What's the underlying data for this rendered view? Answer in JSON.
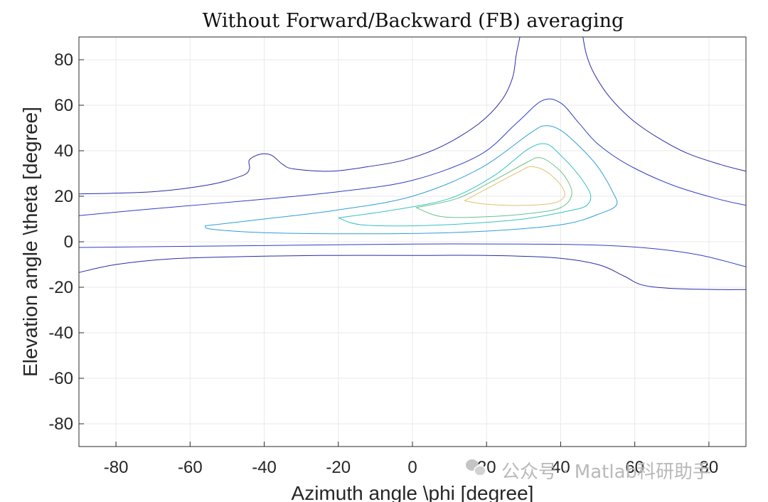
{
  "chart_data": {
    "type": "contour",
    "title": "Without Forward/Backward (FB) averaging",
    "xlabel": "Azimuth angle \\phi [degree]",
    "ylabel": "Elevation angle \\theta [degree]",
    "xlim": [
      -90,
      90
    ],
    "ylim": [
      -90,
      90
    ],
    "xticks": [
      -80,
      -60,
      -40,
      -20,
      0,
      20,
      40,
      60,
      80
    ],
    "yticks": [
      80,
      60,
      40,
      20,
      0,
      -20,
      -40,
      -60,
      -80
    ],
    "grid": true,
    "levels": [
      {
        "name": "level-1",
        "color": "#2a2aa8",
        "paths": [
          [
            [
              -90,
              21
            ],
            [
              -70,
              22
            ],
            [
              -55,
              25
            ],
            [
              -46,
              29
            ],
            [
              -44,
              32
            ],
            [
              -44,
              36
            ],
            [
              -41,
              38.5
            ],
            [
              -38,
              38
            ],
            [
              -35,
              34
            ],
            [
              -32,
              32
            ],
            [
              -22,
              31
            ],
            [
              -12,
              33
            ],
            [
              -2,
              36
            ],
            [
              8,
              42
            ],
            [
              18,
              52
            ],
            [
              24,
              62
            ],
            [
              27,
              72
            ],
            [
              28,
              82
            ],
            [
              29,
              90
            ]
          ],
          [
            [
              46,
              90
            ],
            [
              47,
              82
            ],
            [
              49,
              74
            ],
            [
              53,
              64
            ],
            [
              59,
              54
            ],
            [
              66,
              46
            ],
            [
              74,
              39
            ],
            [
              83,
              34
            ],
            [
              90,
              31
            ]
          ],
          [
            [
              -90,
              -13.5
            ],
            [
              -80,
              -10
            ],
            [
              -65,
              -7.5
            ],
            [
              -45,
              -6.5
            ],
            [
              -25,
              -6
            ],
            [
              0,
              -6
            ],
            [
              20,
              -6
            ],
            [
              38,
              -7
            ],
            [
              50,
              -10
            ],
            [
              57,
              -15
            ],
            [
              62,
              -19
            ],
            [
              70,
              -20.5
            ],
            [
              82,
              -21
            ],
            [
              90,
              -21
            ]
          ]
        ]
      },
      {
        "name": "level-2",
        "color": "#2e3fc4",
        "paths": [
          [
            [
              -90,
              11.5
            ],
            [
              -70,
              14.5
            ],
            [
              -45,
              18
            ],
            [
              -20,
              22
            ],
            [
              0,
              27
            ],
            [
              18,
              38
            ],
            [
              28,
              52
            ],
            [
              35,
              62
            ],
            [
              40,
              61
            ],
            [
              45,
              52
            ],
            [
              50,
              43
            ],
            [
              58,
              34
            ],
            [
              70,
              25
            ],
            [
              82,
              19
            ],
            [
              90,
              16
            ]
          ],
          [
            [
              -90,
              -2.5
            ],
            [
              -60,
              -2
            ],
            [
              -30,
              -1.5
            ],
            [
              0,
              -1
            ],
            [
              30,
              -1
            ],
            [
              50,
              -1.5
            ],
            [
              65,
              -3
            ],
            [
              78,
              -6
            ],
            [
              90,
              -11
            ]
          ]
        ]
      },
      {
        "name": "level-3",
        "color": "#2f9ed6",
        "paths": [
          [
            [
              -56,
              7
            ],
            [
              -40,
              10
            ],
            [
              -20,
              14
            ],
            [
              0,
              20
            ],
            [
              18,
              32
            ],
            [
              32,
              48
            ],
            [
              36,
              51
            ],
            [
              40,
              49
            ],
            [
              45,
              42
            ],
            [
              50,
              33
            ],
            [
              54,
              22
            ],
            [
              55,
              16
            ],
            [
              50,
              12
            ],
            [
              42,
              8
            ],
            [
              28,
              5.5
            ],
            [
              10,
              4
            ],
            [
              -15,
              3.5
            ],
            [
              -40,
              4
            ],
            [
              -54,
              5.5
            ],
            [
              -56,
              7
            ]
          ]
        ]
      },
      {
        "name": "level-4",
        "color": "#35c2c2",
        "paths": [
          [
            [
              -20,
              10.5
            ],
            [
              -5,
              14
            ],
            [
              10,
              19
            ],
            [
              22,
              29
            ],
            [
              31,
              40.5
            ],
            [
              36,
              43
            ],
            [
              40,
              38
            ],
            [
              45,
              29
            ],
            [
              48,
              21
            ],
            [
              47,
              16
            ],
            [
              42,
              13.5
            ],
            [
              30,
              10
            ],
            [
              15,
              8
            ],
            [
              0,
              7
            ],
            [
              -14,
              7.5
            ],
            [
              -20,
              10.5
            ]
          ]
        ]
      },
      {
        "name": "level-5",
        "color": "#6cc08a",
        "paths": [
          [
            [
              1,
              15
            ],
            [
              12,
              19
            ],
            [
              22,
              27
            ],
            [
              31,
              35
            ],
            [
              34,
              37
            ],
            [
              37,
              35
            ],
            [
              41,
              29
            ],
            [
              43,
              21
            ],
            [
              40,
              15
            ],
            [
              32,
              12.5
            ],
            [
              20,
              11
            ],
            [
              8,
              11
            ],
            [
              1,
              15
            ]
          ]
        ]
      },
      {
        "name": "level-6",
        "color": "#e0c070",
        "paths": [
          [
            [
              14,
              18
            ],
            [
              22,
              25
            ],
            [
              29,
              31
            ],
            [
              32,
              33
            ],
            [
              36,
              31
            ],
            [
              40,
              25
            ],
            [
              41,
              20
            ],
            [
              38,
              17
            ],
            [
              30,
              16
            ],
            [
              20,
              16.5
            ],
            [
              14,
              18
            ]
          ]
        ]
      }
    ]
  },
  "watermark": {
    "text": "公众号 · Matlab科研助手",
    "icon": "wechat-icon"
  }
}
